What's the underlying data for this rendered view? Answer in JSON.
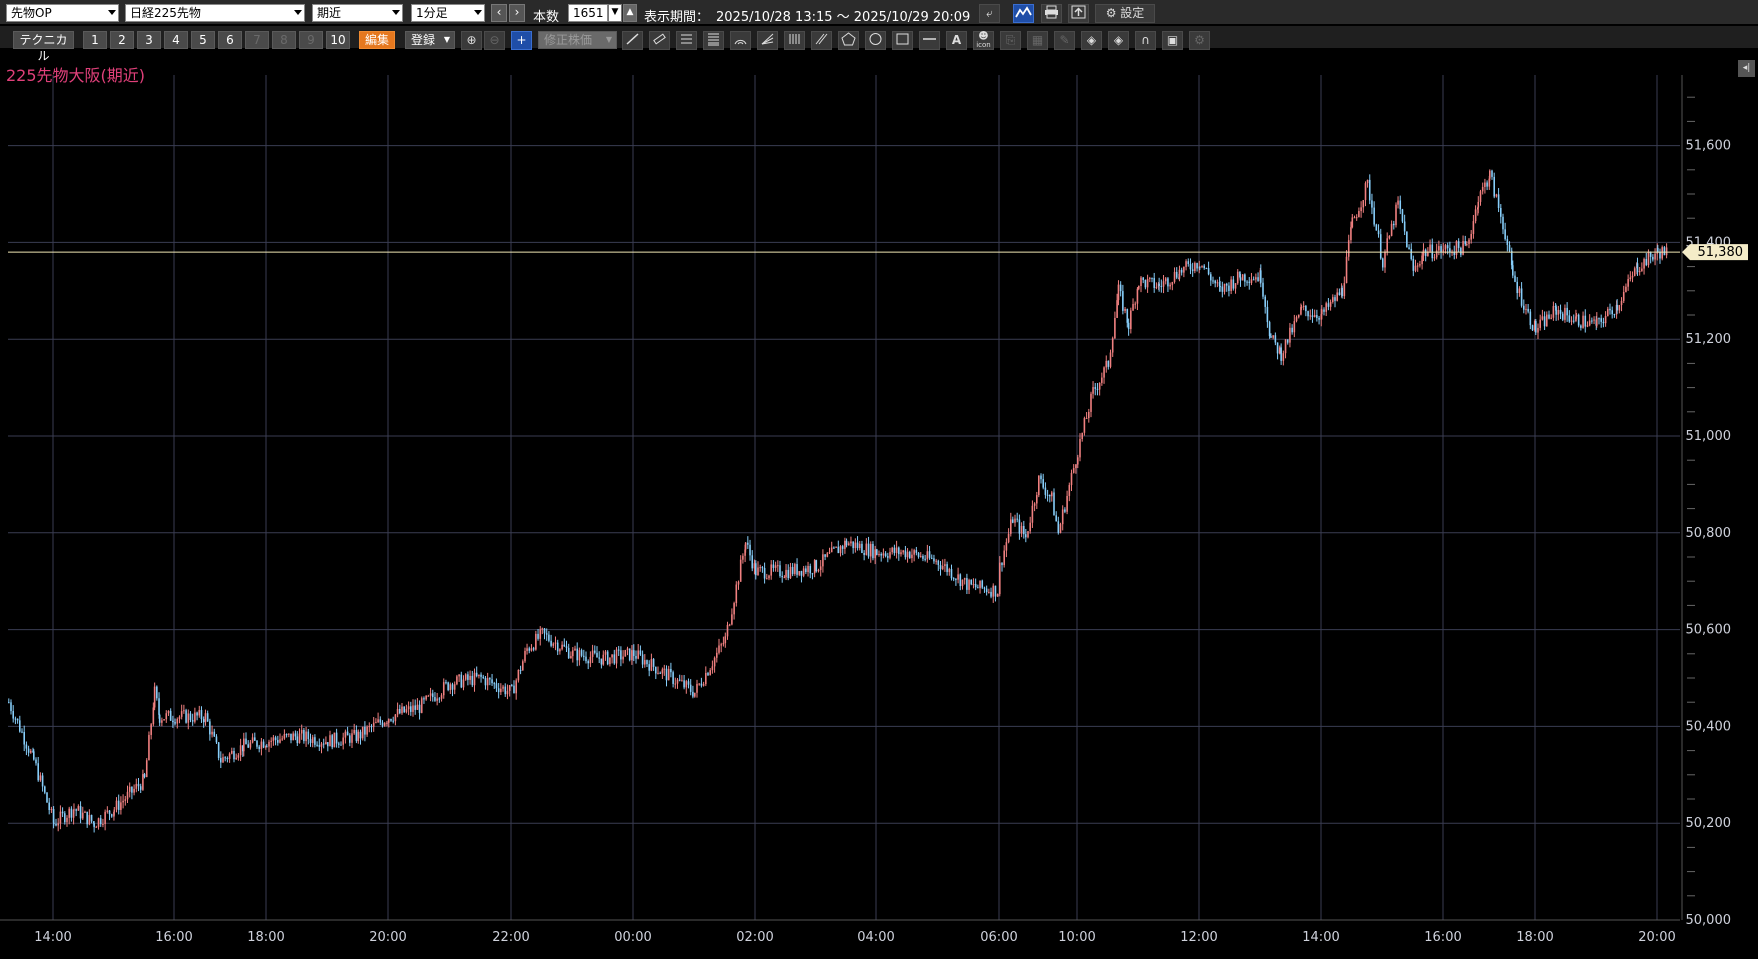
{
  "toolbar": {
    "instrument_type": "先物OP",
    "instrument": "日経225先物",
    "contract_month": "期近",
    "interval": "1分足",
    "bars_label": "本数",
    "bars_value": "1651",
    "period_label": "表示期間：",
    "period_value": "2025/10/28 13:15 ～ 2025/10/29 20:09",
    "settings_label": "設定"
  },
  "toolbar2": {
    "technical_label": "テクニカル",
    "presets": [
      "1",
      "2",
      "3",
      "4",
      "5",
      "6",
      "7",
      "8",
      "9",
      "10"
    ],
    "edit_label": "編集",
    "register_label": "登録",
    "adjusted_price_label": "修正株価",
    "text_tool_label": "A",
    "icon_tool_label": "icon"
  },
  "symbol_title": "225先物大阪(期近)",
  "icons": {
    "prev": "chevron-left-icon",
    "next": "chevron-right-icon",
    "back": "return-arrow-icon",
    "print": "printer-icon",
    "export": "export-icon",
    "settings": "gear-icon",
    "zoom_in": "zoom-in-icon",
    "zoom_out": "zoom-out-icon",
    "crosshair": "crosshair-icon"
  },
  "colors": {
    "background": "#000000",
    "grid": "#3a3d52",
    "up_candle": "#f08080",
    "down_candle": "#87cefa",
    "current_price_line": "#f0e6b4",
    "title": "#e0407a",
    "accent_button": "#e5781f"
  },
  "chart_data": {
    "type": "candlestick",
    "current_price": 51380,
    "current_price_label": "51,380",
    "ylim": [
      50000,
      51800
    ],
    "y_ticks": [
      50000,
      50200,
      50400,
      50600,
      50800,
      51000,
      51200,
      51400,
      51600
    ],
    "y_tick_labels": [
      "50,000",
      "50,200",
      "50,400",
      "50,600",
      "50,800",
      "51,000",
      "51,200",
      "51,400",
      "51,600"
    ],
    "x_tick_labels": [
      "14:00",
      "16:00",
      "18:00",
      "20:00",
      "22:00",
      "00:00",
      "02:00",
      "04:00",
      "06:00",
      "10:00",
      "12:00",
      "14:00",
      "16:00",
      "18:00",
      "20:00"
    ],
    "price_path": [
      [
        "13:15",
        50450
      ],
      [
        "13:40",
        50330
      ],
      [
        "14:00",
        50200
      ],
      [
        "14:20",
        50230
      ],
      [
        "14:40",
        50200
      ],
      [
        "15:00",
        50230
      ],
      [
        "15:30",
        50290
      ],
      [
        "15:40",
        50470
      ],
      [
        "15:45",
        50420
      ],
      [
        "16:40",
        50420
      ],
      [
        "17:00",
        50330
      ],
      [
        "17:30",
        50360
      ],
      [
        "18:00",
        50370
      ],
      [
        "18:30",
        50380
      ],
      [
        "19:00",
        50370
      ],
      [
        "19:30",
        50380
      ],
      [
        "20:00",
        50420
      ],
      [
        "20:30",
        50440
      ],
      [
        "21:00",
        50490
      ],
      [
        "21:30",
        50500
      ],
      [
        "22:00",
        50470
      ],
      [
        "22:15",
        50560
      ],
      [
        "22:30",
        50590
      ],
      [
        "23:00",
        50550
      ],
      [
        "23:30",
        50540
      ],
      [
        "00:00",
        50550
      ],
      [
        "00:30",
        50510
      ],
      [
        "01:00",
        50470
      ],
      [
        "01:30",
        50580
      ],
      [
        "01:50",
        50780
      ],
      [
        "02:00",
        50720
      ],
      [
        "02:30",
        50720
      ],
      [
        "03:00",
        50730
      ],
      [
        "03:30",
        50780
      ],
      [
        "04:00",
        50760
      ],
      [
        "04:30",
        50760
      ],
      [
        "05:00",
        50740
      ],
      [
        "05:30",
        50690
      ],
      [
        "06:00",
        50680
      ],
      [
        "06:15",
        50690
      ],
      [
        "09:00",
        50730
      ],
      [
        "09:10",
        50830
      ],
      [
        "09:20",
        50790
      ],
      [
        "09:30",
        50910
      ],
      [
        "09:40",
        50870
      ],
      [
        "09:45",
        50800
      ],
      [
        "10:00",
        50970
      ],
      [
        "10:15",
        51090
      ],
      [
        "10:30",
        51150
      ],
      [
        "10:40",
        51300
      ],
      [
        "10:50",
        51230
      ],
      [
        "11:00",
        51320
      ],
      [
        "11:20",
        51310
      ],
      [
        "11:40",
        51340
      ],
      [
        "12:00",
        51360
      ],
      [
        "12:20",
        51300
      ],
      [
        "12:40",
        51330
      ],
      [
        "13:00",
        51330
      ],
      [
        "13:10",
        51200
      ],
      [
        "13:20",
        51170
      ],
      [
        "13:40",
        51260
      ],
      [
        "14:00",
        51250
      ],
      [
        "14:20",
        51300
      ],
      [
        "14:30",
        51440
      ],
      [
        "14:45",
        51520
      ],
      [
        "15:00",
        51360
      ],
      [
        "15:15",
        51480
      ],
      [
        "15:30",
        51340
      ],
      [
        "15:40",
        51380
      ],
      [
        "16:30",
        51390
      ],
      [
        "16:45",
        51490
      ],
      [
        "17:00",
        51540
      ],
      [
        "17:20",
        51420
      ],
      [
        "17:30",
        51330
      ],
      [
        "17:50",
        51250
      ],
      [
        "18:00",
        51220
      ],
      [
        "18:20",
        51260
      ],
      [
        "18:40",
        51240
      ],
      [
        "19:00",
        51230
      ],
      [
        "19:20",
        51270
      ],
      [
        "19:40",
        51350
      ],
      [
        "20:00",
        51380
      ],
      [
        "20:09",
        51380
      ]
    ]
  }
}
